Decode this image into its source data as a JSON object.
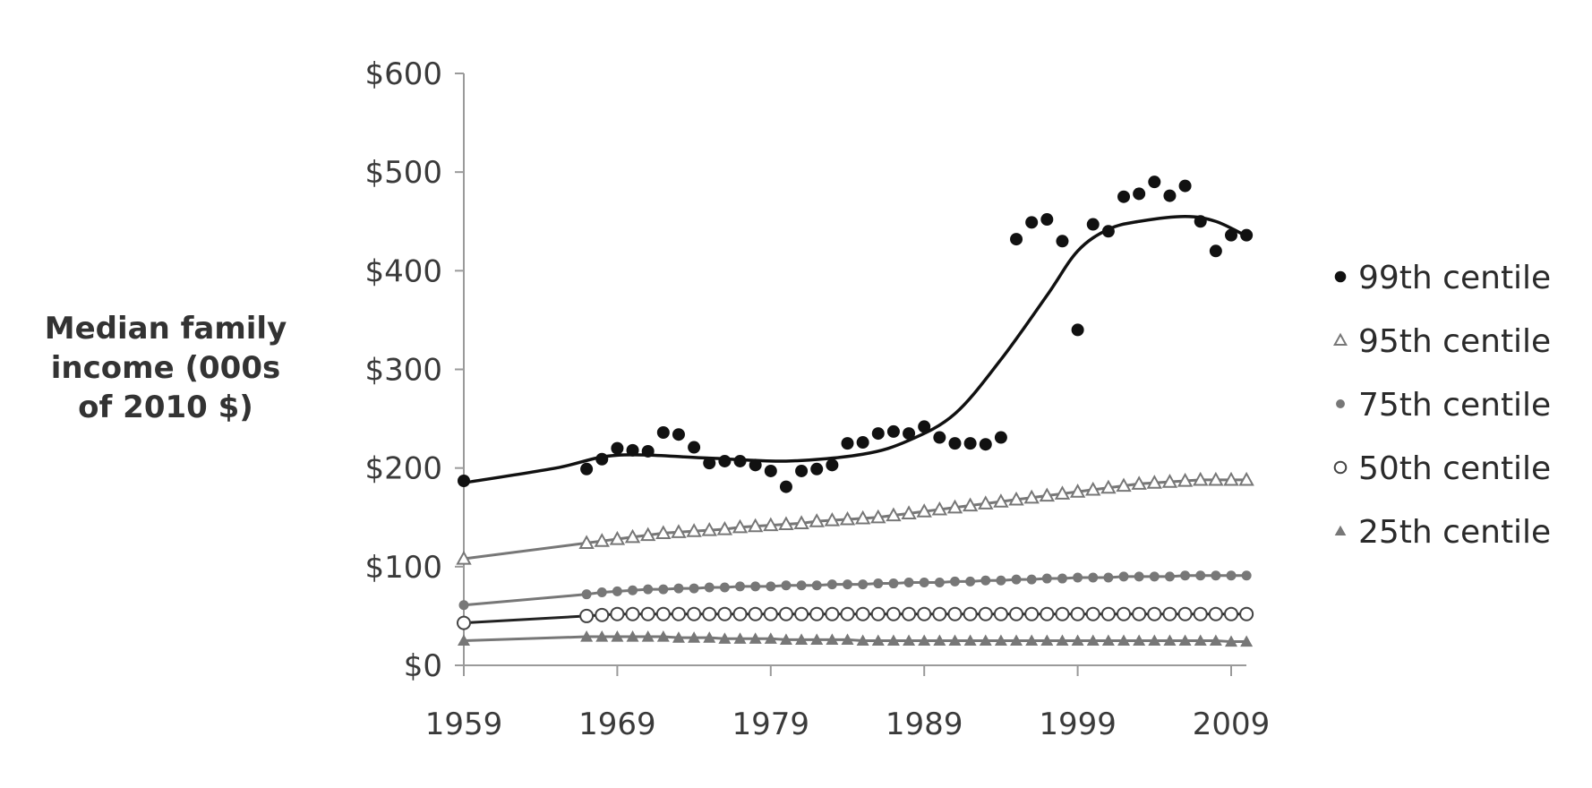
{
  "chart_data": {
    "type": "scatter",
    "title": "",
    "xlabel": "",
    "ylabel_lines": [
      "Median family",
      "income (000s",
      "of 2010 $)"
    ],
    "xlim": [
      1959,
      2010
    ],
    "ylim": [
      0,
      600
    ],
    "x_ticks": [
      1959,
      1969,
      1979,
      1989,
      1999,
      2009
    ],
    "x_tick_labels": [
      "1959",
      "1969",
      "1979",
      "1989",
      "1999",
      "2009"
    ],
    "y_ticks": [
      0,
      100,
      200,
      300,
      400,
      500,
      600
    ],
    "y_tick_labels": [
      "$0",
      "$100",
      "$200",
      "$300",
      "$400",
      "$500",
      "$600"
    ],
    "grid": false,
    "legend_position": "right",
    "series": [
      {
        "name": "99th centile",
        "marker": "filled-circle",
        "color": "#111111",
        "x": [
          1959,
          1967,
          1968,
          1969,
          1970,
          1971,
          1972,
          1973,
          1974,
          1975,
          1976,
          1977,
          1978,
          1979,
          1980,
          1981,
          1982,
          1983,
          1984,
          1985,
          1986,
          1987,
          1988,
          1989,
          1990,
          1991,
          1992,
          1993,
          1994,
          1995,
          1996,
          1997,
          1998,
          1999,
          2000,
          2001,
          2002,
          2003,
          2004,
          2005,
          2006,
          2007,
          2008,
          2009,
          2010
        ],
        "y": [
          187,
          199,
          209,
          220,
          218,
          217,
          236,
          234,
          221,
          205,
          207,
          207,
          203,
          197,
          181,
          197,
          199,
          203,
          225,
          226,
          235,
          237,
          235,
          242,
          231,
          225,
          225,
          224,
          231,
          432,
          449,
          452,
          430,
          340,
          447,
          440,
          475,
          478,
          490,
          476,
          486,
          450,
          420,
          436,
          436
        ],
        "trend_x": [
          1959,
          1965,
          1969,
          1975,
          1980,
          1985,
          1988,
          1991,
          1994,
          1997,
          1999,
          2001,
          2003,
          2006,
          2008,
          2010
        ],
        "trend_y": [
          185,
          200,
          213,
          210,
          207,
          214,
          228,
          255,
          310,
          375,
          420,
          442,
          450,
          455,
          450,
          435
        ]
      },
      {
        "name": "95th centile",
        "marker": "open-triangle",
        "color": "#777777",
        "x": [
          1959,
          1967,
          1968,
          1969,
          1970,
          1971,
          1972,
          1973,
          1974,
          1975,
          1976,
          1977,
          1978,
          1979,
          1980,
          1981,
          1982,
          1983,
          1984,
          1985,
          1986,
          1987,
          1988,
          1989,
          1990,
          1991,
          1992,
          1993,
          1994,
          1995,
          1996,
          1997,
          1998,
          1999,
          2000,
          2001,
          2002,
          2003,
          2004,
          2005,
          2006,
          2007,
          2008,
          2009,
          2010
        ],
        "y": [
          108,
          124,
          126,
          128,
          130,
          132,
          134,
          135,
          136,
          137,
          138,
          140,
          141,
          142,
          143,
          144,
          146,
          147,
          148,
          149,
          150,
          152,
          154,
          156,
          158,
          160,
          162,
          164,
          166,
          168,
          170,
          172,
          174,
          176,
          178,
          180,
          182,
          184,
          185,
          186,
          187,
          188,
          188,
          188,
          188
        ]
      },
      {
        "name": "75th centile",
        "marker": "filled-circle-small",
        "color": "#777777",
        "x": [
          1959,
          1967,
          1968,
          1969,
          1970,
          1971,
          1972,
          1973,
          1974,
          1975,
          1976,
          1977,
          1978,
          1979,
          1980,
          1981,
          1982,
          1983,
          1984,
          1985,
          1986,
          1987,
          1988,
          1989,
          1990,
          1991,
          1992,
          1993,
          1994,
          1995,
          1996,
          1997,
          1998,
          1999,
          2000,
          2001,
          2002,
          2003,
          2004,
          2005,
          2006,
          2007,
          2008,
          2009,
          2010
        ],
        "y": [
          61,
          72,
          74,
          75,
          76,
          77,
          77,
          78,
          78,
          79,
          79,
          80,
          80,
          80,
          81,
          81,
          81,
          82,
          82,
          82,
          83,
          83,
          84,
          84,
          84,
          85,
          85,
          86,
          86,
          87,
          87,
          88,
          88,
          89,
          89,
          89,
          90,
          90,
          90,
          90,
          91,
          91,
          91,
          91,
          91
        ]
      },
      {
        "name": "50th centile",
        "marker": "open-circle",
        "color": "#444444",
        "x": [
          1959,
          1967,
          1968,
          1969,
          1970,
          1971,
          1972,
          1973,
          1974,
          1975,
          1976,
          1977,
          1978,
          1979,
          1980,
          1981,
          1982,
          1983,
          1984,
          1985,
          1986,
          1987,
          1988,
          1989,
          1990,
          1991,
          1992,
          1993,
          1994,
          1995,
          1996,
          1997,
          1998,
          1999,
          2000,
          2001,
          2002,
          2003,
          2004,
          2005,
          2006,
          2007,
          2008,
          2009,
          2010
        ],
        "y": [
          43,
          50,
          51,
          52,
          52,
          52,
          52,
          52,
          52,
          52,
          52,
          52,
          52,
          52,
          52,
          52,
          52,
          52,
          52,
          52,
          52,
          52,
          52,
          52,
          52,
          52,
          52,
          52,
          52,
          52,
          52,
          52,
          52,
          52,
          52,
          52,
          52,
          52,
          52,
          52,
          52,
          52,
          52,
          52,
          52
        ]
      },
      {
        "name": "25th centile",
        "marker": "filled-triangle",
        "color": "#777777",
        "x": [
          1959,
          1967,
          1968,
          1969,
          1970,
          1971,
          1972,
          1973,
          1974,
          1975,
          1976,
          1977,
          1978,
          1979,
          1980,
          1981,
          1982,
          1983,
          1984,
          1985,
          1986,
          1987,
          1988,
          1989,
          1990,
          1991,
          1992,
          1993,
          1994,
          1995,
          1996,
          1997,
          1998,
          1999,
          2000,
          2001,
          2002,
          2003,
          2004,
          2005,
          2006,
          2007,
          2008,
          2009,
          2010
        ],
        "y": [
          25,
          29,
          29,
          29,
          29,
          29,
          29,
          28,
          28,
          28,
          27,
          27,
          27,
          27,
          26,
          26,
          26,
          26,
          26,
          25,
          25,
          25,
          25,
          25,
          25,
          25,
          25,
          25,
          25,
          25,
          25,
          25,
          25,
          25,
          25,
          25,
          25,
          25,
          25,
          25,
          25,
          25,
          25,
          24,
          24
        ]
      }
    ]
  }
}
